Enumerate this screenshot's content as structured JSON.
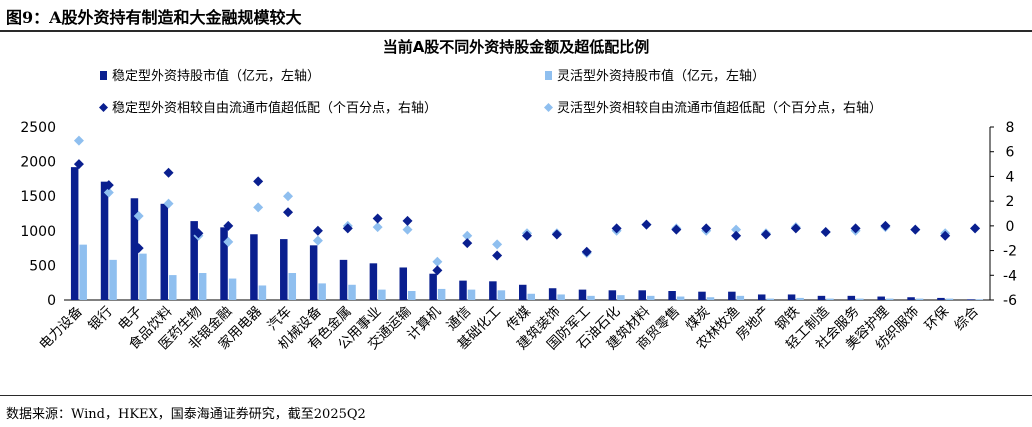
{
  "figure": {
    "title": "图9：A股外资持有制造和大金融规模较大",
    "source": "数据来源：Wind，HKEX，国泰海通证券研究，截至2025Q2"
  },
  "chart_data": {
    "type": "bar",
    "title": "当前A股不同外资持股金额及超低配比例",
    "categories": [
      "电力设备",
      "银行",
      "电子",
      "食品饮料",
      "医药生物",
      "非银金融",
      "家用电器",
      "汽车",
      "机械设备",
      "有色金属",
      "公用事业",
      "交通运输",
      "计算机",
      "通信",
      "基础化工",
      "传媒",
      "建筑装饰",
      "国防军工",
      "石油石化",
      "建筑材料",
      "商贸零售",
      "煤炭",
      "农林牧渔",
      "房地产",
      "钢铁",
      "轻工制造",
      "社会服务",
      "美容护理",
      "纺织服饰",
      "环保",
      "综合"
    ],
    "y_left": {
      "ticks": [
        0,
        500,
        1000,
        1500,
        2000,
        2500
      ],
      "range": [
        0,
        2500
      ]
    },
    "y_right": {
      "ticks": [
        -6,
        -4,
        -2,
        0,
        2,
        4,
        6,
        8
      ],
      "range": [
        -6,
        8
      ]
    },
    "legend": {
      "position": "top",
      "items": [
        "稳定型外资持股市值（亿元，左轴）",
        "灵活型外资持股市值（亿元，左轴）",
        "稳定型外资相较自由流通市值超低配（个百分点，右轴）",
        "灵活型外资相较自由流通市值超低配（个百分点，右轴）"
      ]
    },
    "series": [
      {
        "name": "稳定型外资持股市值（亿元，左轴）",
        "type": "bar",
        "axis": "left",
        "color": "#0a1f8f",
        "values": [
          1920,
          1710,
          1470,
          1390,
          1140,
          1050,
          950,
          880,
          790,
          580,
          530,
          470,
          380,
          280,
          270,
          220,
          170,
          150,
          140,
          140,
          130,
          120,
          120,
          80,
          80,
          60,
          60,
          50,
          40,
          30,
          10
        ]
      },
      {
        "name": "灵活型外资持股市值（亿元，左轴）",
        "type": "bar",
        "axis": "left",
        "color": "#8fbfef",
        "values": [
          800,
          580,
          670,
          360,
          390,
          310,
          210,
          390,
          240,
          220,
          150,
          130,
          160,
          150,
          140,
          90,
          80,
          60,
          70,
          60,
          50,
          40,
          60,
          20,
          30,
          20,
          20,
          20,
          20,
          20,
          10
        ]
      },
      {
        "name": "稳定型外资相较自由流通市值超低配（个百分点，右轴）",
        "type": "scatter",
        "axis": "right",
        "color": "#0a1f8f",
        "values": [
          5.0,
          3.3,
          -1.8,
          4.3,
          -0.6,
          0.0,
          3.6,
          1.1,
          -0.4,
          -0.2,
          0.6,
          0.4,
          -3.6,
          -1.4,
          -2.4,
          -0.8,
          -0.7,
          -2.1,
          -0.2,
          0.1,
          -0.3,
          -0.2,
          -0.8,
          -0.7,
          -0.2,
          -0.5,
          -0.2,
          0.0,
          -0.3,
          -0.8,
          -0.2
        ]
      },
      {
        "name": "灵活型外资相较自由流通市值超低配（个百分点，右轴）",
        "type": "scatter",
        "axis": "right",
        "color": "#8fbfef",
        "values": [
          6.9,
          2.7,
          0.8,
          1.8,
          -0.8,
          -1.3,
          1.5,
          2.4,
          -1.2,
          0.0,
          -0.1,
          -0.3,
          -2.9,
          -0.8,
          -1.5,
          -0.6,
          -0.6,
          -2.2,
          -0.4,
          0.1,
          -0.2,
          -0.4,
          -0.3,
          -0.6,
          -0.1,
          -0.5,
          -0.4,
          -0.1,
          -0.3,
          -0.6,
          -0.2
        ]
      }
    ]
  }
}
